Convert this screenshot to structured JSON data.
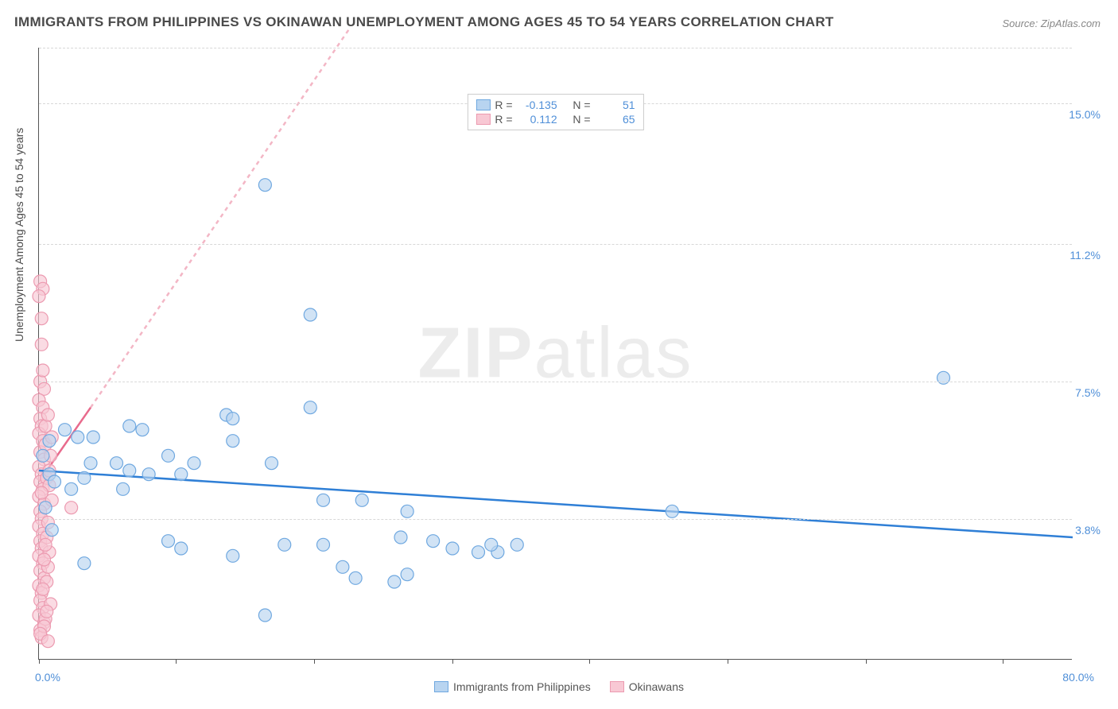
{
  "title": "IMMIGRANTS FROM PHILIPPINES VS OKINAWAN UNEMPLOYMENT AMONG AGES 45 TO 54 YEARS CORRELATION CHART",
  "source": "Source: ZipAtlas.com",
  "watermark_zip": "ZIP",
  "watermark_atlas": "atlas",
  "chart": {
    "type": "scatter",
    "ylabel": "Unemployment Among Ages 45 to 54 years",
    "ylabel_fontsize": 14,
    "xlim": [
      0.0,
      80.0
    ],
    "ylim": [
      0.0,
      16.5
    ],
    "x_axis_label_min": "0.0%",
    "x_axis_label_max": "80.0%",
    "y_tick_labels": [
      {
        "v": 3.8,
        "label": "3.8%"
      },
      {
        "v": 7.5,
        "label": "7.5%"
      },
      {
        "v": 11.2,
        "label": "11.2%"
      },
      {
        "v": 15.0,
        "label": "15.0%"
      }
    ],
    "h_gridlines": [
      3.8,
      7.5,
      11.2,
      15.0,
      16.5
    ],
    "x_ticks": [
      0,
      10.6,
      21.3,
      32.0,
      42.6,
      53.3,
      64.0,
      74.6
    ],
    "background_color": "#ffffff",
    "grid_color": "#d8d8d8",
    "axis_color": "#555555",
    "label_color": "#4f8fd8",
    "marker_radius": 8,
    "marker_stroke_width": 1.2,
    "trend_line_width": 2.5,
    "series": [
      {
        "name": "Immigrants from Philippines",
        "color_fill": "#b8d4f0",
        "color_stroke": "#6fa8e0",
        "R": "-0.135",
        "N": "51",
        "trend": {
          "x1": 0,
          "y1": 5.1,
          "x2": 80,
          "y2": 3.3,
          "dash": "none",
          "color": "#2f7fd6"
        },
        "points": [
          {
            "x": 17.5,
            "y": 12.8
          },
          {
            "x": 21.0,
            "y": 9.3
          },
          {
            "x": 70.0,
            "y": 7.6
          },
          {
            "x": 21.0,
            "y": 6.8
          },
          {
            "x": 14.5,
            "y": 6.6
          },
          {
            "x": 15.0,
            "y": 6.5
          },
          {
            "x": 7.0,
            "y": 6.3
          },
          {
            "x": 8.0,
            "y": 6.2
          },
          {
            "x": 2.0,
            "y": 6.2
          },
          {
            "x": 3.0,
            "y": 6.0
          },
          {
            "x": 15.0,
            "y": 5.9
          },
          {
            "x": 10.0,
            "y": 5.5
          },
          {
            "x": 12.0,
            "y": 5.3
          },
          {
            "x": 4.0,
            "y": 5.3
          },
          {
            "x": 6.0,
            "y": 5.3
          },
          {
            "x": 18.0,
            "y": 5.3
          },
          {
            "x": 7.0,
            "y": 5.1
          },
          {
            "x": 8.5,
            "y": 5.0
          },
          {
            "x": 11.0,
            "y": 5.0
          },
          {
            "x": 3.5,
            "y": 4.9
          },
          {
            "x": 0.8,
            "y": 5.0
          },
          {
            "x": 1.2,
            "y": 4.8
          },
          {
            "x": 6.5,
            "y": 4.6
          },
          {
            "x": 25.0,
            "y": 4.3
          },
          {
            "x": 22.0,
            "y": 4.3
          },
          {
            "x": 28.5,
            "y": 4.0
          },
          {
            "x": 49.0,
            "y": 4.0
          },
          {
            "x": 28.0,
            "y": 3.3
          },
          {
            "x": 30.5,
            "y": 3.2
          },
          {
            "x": 34.0,
            "y": 2.9
          },
          {
            "x": 35.5,
            "y": 2.9
          },
          {
            "x": 37.0,
            "y": 3.1
          },
          {
            "x": 11.0,
            "y": 3.0
          },
          {
            "x": 10.0,
            "y": 3.2
          },
          {
            "x": 15.0,
            "y": 2.8
          },
          {
            "x": 22.0,
            "y": 3.1
          },
          {
            "x": 23.5,
            "y": 2.5
          },
          {
            "x": 24.5,
            "y": 2.2
          },
          {
            "x": 27.5,
            "y": 2.1
          },
          {
            "x": 28.5,
            "y": 2.3
          },
          {
            "x": 3.5,
            "y": 2.6
          },
          {
            "x": 17.5,
            "y": 1.2
          },
          {
            "x": 0.5,
            "y": 4.1
          },
          {
            "x": 0.3,
            "y": 5.5
          },
          {
            "x": 1.0,
            "y": 3.5
          },
          {
            "x": 0.8,
            "y": 5.9
          },
          {
            "x": 4.2,
            "y": 6.0
          },
          {
            "x": 19.0,
            "y": 3.1
          },
          {
            "x": 32.0,
            "y": 3.0
          },
          {
            "x": 35.0,
            "y": 3.1
          },
          {
            "x": 2.5,
            "y": 4.6
          }
        ]
      },
      {
        "name": "Okinawans",
        "color_fill": "#f8c8d4",
        "color_stroke": "#ec9ab0",
        "R": "0.112",
        "N": "65",
        "trend": {
          "x1": 0,
          "y1": 4.8,
          "x2": 4.0,
          "y2": 6.8,
          "dash": "none",
          "color": "#e86a8c"
        },
        "trend_ext": {
          "x1": 4.0,
          "y1": 6.8,
          "x2": 24.0,
          "y2": 17.0,
          "dash": "5,5",
          "color": "#f3b6c5"
        },
        "points": [
          {
            "x": 0.1,
            "y": 10.2
          },
          {
            "x": 0.3,
            "y": 10.0
          },
          {
            "x": 0.0,
            "y": 9.8
          },
          {
            "x": 0.2,
            "y": 9.2
          },
          {
            "x": 0.1,
            "y": 7.5
          },
          {
            "x": 0.4,
            "y": 7.3
          },
          {
            "x": 0.0,
            "y": 7.0
          },
          {
            "x": 0.3,
            "y": 6.8
          },
          {
            "x": 0.1,
            "y": 6.5
          },
          {
            "x": 0.2,
            "y": 6.3
          },
          {
            "x": 0.0,
            "y": 6.1
          },
          {
            "x": 0.3,
            "y": 5.9
          },
          {
            "x": 0.1,
            "y": 5.6
          },
          {
            "x": 0.4,
            "y": 5.4
          },
          {
            "x": 0.0,
            "y": 5.2
          },
          {
            "x": 0.2,
            "y": 5.0
          },
          {
            "x": 0.1,
            "y": 4.8
          },
          {
            "x": 0.3,
            "y": 4.6
          },
          {
            "x": 0.0,
            "y": 4.4
          },
          {
            "x": 0.4,
            "y": 4.2
          },
          {
            "x": 2.5,
            "y": 4.1
          },
          {
            "x": 0.1,
            "y": 4.0
          },
          {
            "x": 0.2,
            "y": 3.8
          },
          {
            "x": 0.0,
            "y": 3.6
          },
          {
            "x": 0.3,
            "y": 3.4
          },
          {
            "x": 0.1,
            "y": 3.2
          },
          {
            "x": 0.2,
            "y": 3.0
          },
          {
            "x": 0.0,
            "y": 2.8
          },
          {
            "x": 0.3,
            "y": 2.6
          },
          {
            "x": 0.1,
            "y": 2.4
          },
          {
            "x": 0.4,
            "y": 2.2
          },
          {
            "x": 0.0,
            "y": 2.0
          },
          {
            "x": 0.2,
            "y": 1.8
          },
          {
            "x": 0.1,
            "y": 1.6
          },
          {
            "x": 0.3,
            "y": 1.4
          },
          {
            "x": 0.0,
            "y": 1.2
          },
          {
            "x": 0.4,
            "y": 1.0
          },
          {
            "x": 0.1,
            "y": 0.8
          },
          {
            "x": 0.2,
            "y": 0.6
          },
          {
            "x": 0.5,
            "y": 5.8
          },
          {
            "x": 0.6,
            "y": 4.9
          },
          {
            "x": 0.7,
            "y": 3.7
          },
          {
            "x": 0.8,
            "y": 2.9
          },
          {
            "x": 0.5,
            "y": 6.3
          },
          {
            "x": 0.9,
            "y": 1.5
          },
          {
            "x": 1.0,
            "y": 4.3
          },
          {
            "x": 0.6,
            "y": 2.1
          },
          {
            "x": 0.7,
            "y": 6.6
          },
          {
            "x": 0.8,
            "y": 5.1
          },
          {
            "x": 0.3,
            "y": 7.8
          },
          {
            "x": 0.2,
            "y": 8.5
          },
          {
            "x": 0.5,
            "y": 1.1
          },
          {
            "x": 0.4,
            "y": 0.9
          },
          {
            "x": 0.1,
            "y": 0.7
          },
          {
            "x": 0.6,
            "y": 3.3
          },
          {
            "x": 0.7,
            "y": 2.5
          },
          {
            "x": 0.8,
            "y": 4.7
          },
          {
            "x": 0.9,
            "y": 5.5
          },
          {
            "x": 0.3,
            "y": 1.9
          },
          {
            "x": 0.2,
            "y": 4.5
          },
          {
            "x": 1.0,
            "y": 6.0
          },
          {
            "x": 0.5,
            "y": 3.1
          },
          {
            "x": 0.4,
            "y": 2.7
          },
          {
            "x": 0.6,
            "y": 1.3
          },
          {
            "x": 0.7,
            "y": 0.5
          }
        ]
      }
    ]
  },
  "legend_top": {
    "r_label": "R =",
    "n_label": "N ="
  },
  "legend_bottom": {
    "series1": "Immigrants from Philippines",
    "series2": "Okinawans"
  }
}
